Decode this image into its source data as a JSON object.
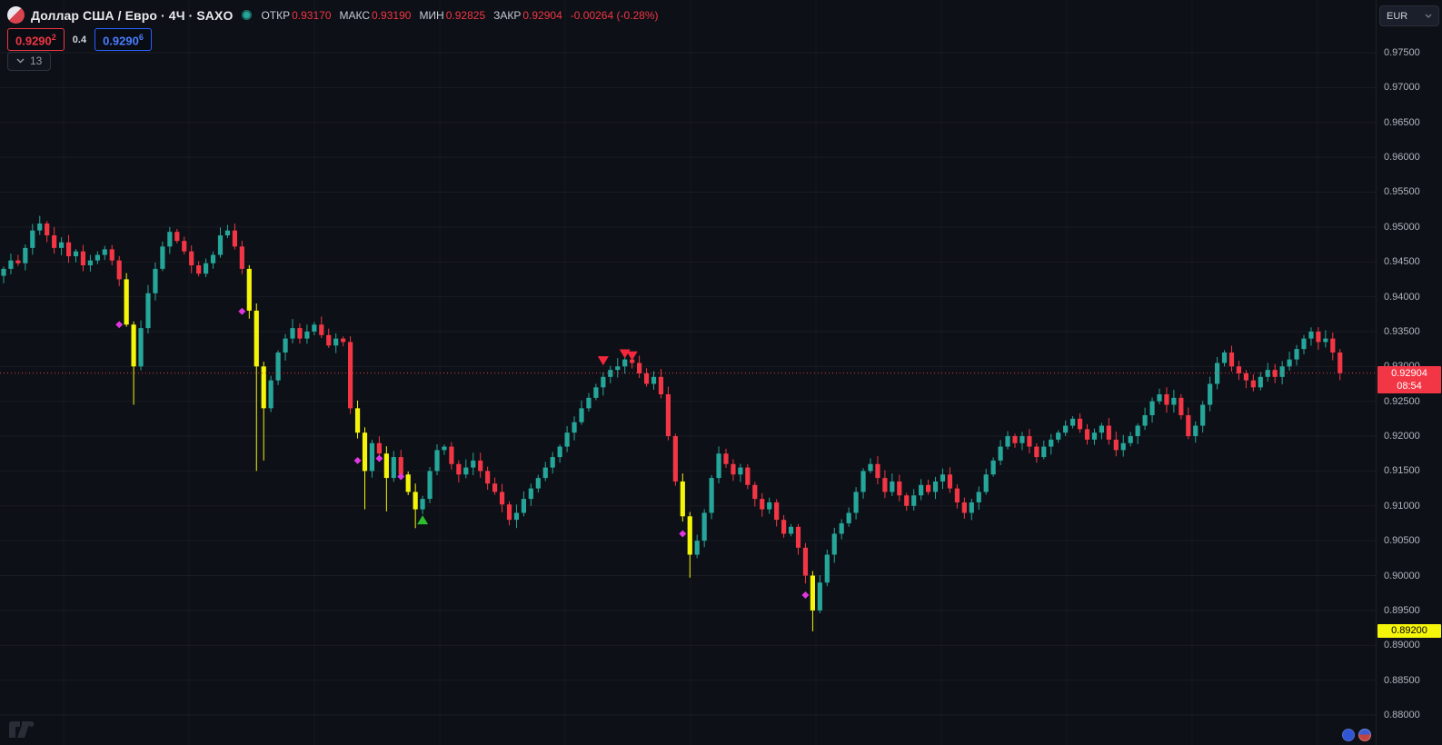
{
  "header": {
    "title_full": "Доллар США / Евро · 4Ч · SAXO",
    "ohlc": {
      "open_label": "ОТКР",
      "open": "0.93170",
      "high_label": "МАКС",
      "high": "0.93190",
      "low_label": "МИН",
      "low": "0.92825",
      "close_label": "ЗАКР",
      "close": "0.92904",
      "change": "-0.00264 (-0.28%)"
    },
    "currency_button": "EUR"
  },
  "quote": {
    "bid": "0.9290",
    "bid_sup": "2",
    "spread": "0.4",
    "ask": "0.9290",
    "ask_sup": "6"
  },
  "legend_collapsed": {
    "count": "13"
  },
  "price_axis": {
    "labels": [
      "0.97500",
      "0.97000",
      "0.96500",
      "0.96000",
      "0.95500",
      "0.95000",
      "0.94500",
      "0.94000",
      "0.93500",
      "0.93000",
      "0.92500",
      "0.92000",
      "0.91500",
      "0.91000",
      "0.90500",
      "0.90000",
      "0.89500",
      "0.89000",
      "0.88500",
      "0.88000"
    ]
  },
  "price_line": {
    "price_label": "0.92904",
    "countdown": "08:54"
  },
  "yellow_label": "0.89200",
  "colors": {
    "background": "#0d1016",
    "up": "#26a69a",
    "down": "#f23645",
    "highlight": "#f5f50a",
    "signal_dot": "#e036e0",
    "sell_marker": "#f5273d",
    "buy_marker": "#2ebd2e",
    "bid": "#f23645",
    "ask": "#2962ff",
    "axis_text": "#b2b5be",
    "price_line": "#f23645",
    "yellow_label_bg": "#f5f50a"
  },
  "chart_data": {
    "type": "candlestick",
    "title": "Доллар США / Евро · 4Ч · SAXO",
    "ylabel": "EUR",
    "ylim": [
      0.876,
      0.983
    ],
    "grid": true,
    "last_price": 0.92904,
    "open_first": 0.943,
    "closes": [
      0.944,
      0.9452,
      0.9448,
      0.947,
      0.9495,
      0.9505,
      0.9488,
      0.947,
      0.9478,
      0.9458,
      0.9465,
      0.9445,
      0.9452,
      0.946,
      0.9468,
      0.9452,
      0.9425,
      0.936,
      0.93,
      0.9355,
      0.9405,
      0.944,
      0.9472,
      0.9493,
      0.948,
      0.9465,
      0.9445,
      0.9433,
      0.9448,
      0.946,
      0.9488,
      0.9495,
      0.9472,
      0.944,
      0.938,
      0.93,
      0.924,
      0.928,
      0.932,
      0.934,
      0.9355,
      0.934,
      0.935,
      0.936,
      0.9345,
      0.933,
      0.934,
      0.9335,
      0.924,
      0.9205,
      0.915,
      0.919,
      0.9175,
      0.914,
      0.917,
      0.9145,
      0.912,
      0.9095,
      0.911,
      0.915,
      0.918,
      0.9185,
      0.916,
      0.9145,
      0.9155,
      0.9165,
      0.915,
      0.9132,
      0.912,
      0.9102,
      0.908,
      0.909,
      0.911,
      0.9125,
      0.914,
      0.9155,
      0.917,
      0.9185,
      0.9205,
      0.922,
      0.924,
      0.9255,
      0.927,
      0.9285,
      0.9295,
      0.93,
      0.931,
      0.9305,
      0.929,
      0.9275,
      0.9285,
      0.926,
      0.92,
      0.9135,
      0.9085,
      0.903,
      0.905,
      0.909,
      0.914,
      0.9175,
      0.916,
      0.9145,
      0.9155,
      0.913,
      0.911,
      0.9095,
      0.9105,
      0.908,
      0.906,
      0.907,
      0.904,
      0.9,
      0.895,
      0.899,
      0.903,
      0.906,
      0.9075,
      0.909,
      0.912,
      0.915,
      0.916,
      0.914,
      0.912,
      0.9135,
      0.9115,
      0.91,
      0.9115,
      0.913,
      0.912,
      0.9135,
      0.9145,
      0.9125,
      0.9105,
      0.909,
      0.9105,
      0.912,
      0.9145,
      0.9165,
      0.9185,
      0.92,
      0.919,
      0.92,
      0.9185,
      0.917,
      0.9185,
      0.9195,
      0.9205,
      0.9215,
      0.9225,
      0.921,
      0.9195,
      0.9205,
      0.9215,
      0.9195,
      0.918,
      0.919,
      0.92,
      0.9215,
      0.923,
      0.925,
      0.926,
      0.9245,
      0.9255,
      0.923,
      0.92,
      0.9215,
      0.9245,
      0.9275,
      0.9305,
      0.932,
      0.93,
      0.929,
      0.928,
      0.927,
      0.9285,
      0.9295,
      0.9285,
      0.93,
      0.931,
      0.9325,
      0.934,
      0.935,
      0.9335,
      0.934,
      0.932,
      0.92904
    ],
    "high_overrides": {
      "5": 0.9516,
      "23": 0.95,
      "31": 0.9503,
      "40": 0.9368,
      "86": 0.9322,
      "181": 0.9356
    },
    "low_overrides": {
      "18": 0.9245,
      "35": 0.915,
      "36": 0.9165,
      "50": 0.9095,
      "53": 0.9092,
      "57": 0.9068,
      "70": 0.9072,
      "95": 0.8997,
      "112": 0.892
    },
    "yellow_candles": [
      17,
      18,
      34,
      35,
      36,
      49,
      50,
      53,
      56,
      57,
      94,
      95,
      112
    ],
    "magenta_dots": [
      [
        16,
        0.936
      ],
      [
        33,
        0.9379
      ],
      [
        49,
        0.9165
      ],
      [
        52,
        0.9168
      ],
      [
        55,
        0.9142
      ],
      [
        94,
        0.906
      ],
      [
        111,
        0.8972
      ]
    ],
    "sell_markers": [
      [
        83,
        0.9308
      ],
      [
        86,
        0.9318
      ],
      [
        87,
        0.9315
      ]
    ],
    "buy_markers": [
      [
        58,
        0.908
      ]
    ]
  }
}
